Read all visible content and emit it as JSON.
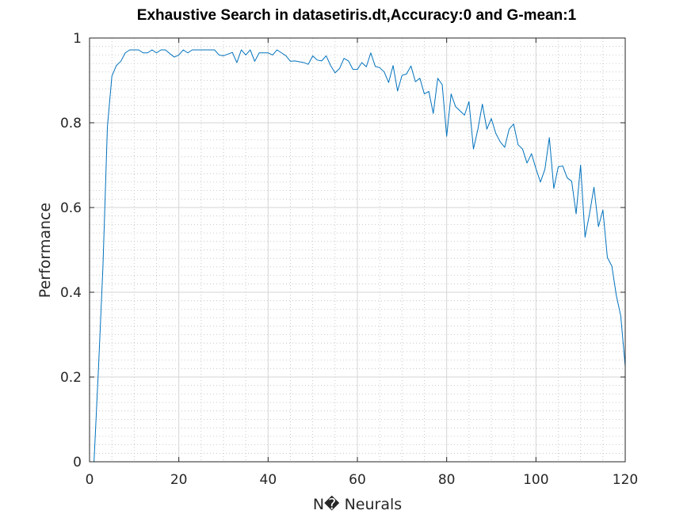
{
  "chart_data": {
    "type": "line",
    "title": "Exhaustive Search in datasetiris.dt,Accuracy:0 and G-mean:1",
    "xlabel": "N� Neurals",
    "ylabel": "Performance",
    "xlim": [
      0,
      120
    ],
    "ylim": [
      0,
      1
    ],
    "xticks": [
      0,
      20,
      40,
      60,
      80,
      100,
      120
    ],
    "yticks": [
      0,
      0.2,
      0.4,
      0.6,
      0.8,
      1
    ],
    "xtick_labels": [
      "0",
      "20",
      "40",
      "60",
      "80",
      "100",
      "120"
    ],
    "ytick_labels": [
      "0",
      "0.2",
      "0.4",
      "0.6",
      "0.8",
      "1"
    ],
    "grid": true,
    "minor_grid": true,
    "series": [
      {
        "color": "#0072bd",
        "x": [
          1,
          2,
          3,
          4,
          5,
          6,
          7,
          8,
          9,
          10,
          11,
          12,
          13,
          14,
          15,
          16,
          17,
          18,
          19,
          20,
          21,
          22,
          23,
          24,
          25,
          26,
          27,
          28,
          29,
          30,
          31,
          32,
          33,
          34,
          35,
          36,
          37,
          38,
          39,
          40,
          41,
          42,
          43,
          44,
          45,
          46,
          47,
          48,
          49,
          50,
          51,
          52,
          53,
          54,
          55,
          56,
          57,
          58,
          59,
          60,
          61,
          62,
          63,
          64,
          65,
          66,
          67,
          68,
          69,
          70,
          71,
          72,
          73,
          74,
          75,
          76,
          77,
          78,
          79,
          80,
          81,
          82,
          83,
          84,
          85,
          86,
          87,
          88,
          89,
          90,
          91,
          92,
          93,
          94,
          95,
          96,
          97,
          98,
          99,
          100,
          101,
          102,
          103,
          104,
          105,
          106,
          107,
          108,
          109,
          110,
          111,
          112,
          113,
          114,
          115,
          116,
          117,
          118,
          119,
          120
        ],
        "y": [
          0,
          0.22,
          0.46,
          0.79,
          0.91,
          0.935,
          0.945,
          0.965,
          0.972,
          0.972,
          0.972,
          0.965,
          0.965,
          0.972,
          0.965,
          0.972,
          0.972,
          0.963,
          0.955,
          0.96,
          0.972,
          0.965,
          0.972,
          0.972,
          0.972,
          0.972,
          0.972,
          0.972,
          0.96,
          0.958,
          0.962,
          0.966,
          0.942,
          0.972,
          0.96,
          0.972,
          0.945,
          0.965,
          0.965,
          0.965,
          0.96,
          0.972,
          0.965,
          0.958,
          0.945,
          0.946,
          0.944,
          0.942,
          0.938,
          0.958,
          0.948,
          0.946,
          0.958,
          0.935,
          0.918,
          0.928,
          0.952,
          0.946,
          0.926,
          0.926,
          0.942,
          0.932,
          0.965,
          0.933,
          0.93,
          0.92,
          0.895,
          0.935,
          0.875,
          0.912,
          0.915,
          0.934,
          0.897,
          0.905,
          0.868,
          0.874,
          0.822,
          0.905,
          0.89,
          0.768,
          0.868,
          0.838,
          0.828,
          0.818,
          0.85,
          0.738,
          0.785,
          0.844,
          0.785,
          0.81,
          0.775,
          0.755,
          0.742,
          0.785,
          0.797,
          0.748,
          0.738,
          0.705,
          0.727,
          0.692,
          0.66,
          0.69,
          0.765,
          0.645,
          0.696,
          0.698,
          0.67,
          0.662,
          0.585,
          0.7,
          0.53,
          0.585,
          0.648,
          0.555,
          0.594,
          0.482,
          0.462,
          0.393,
          0.344,
          0.225
        ]
      }
    ]
  }
}
